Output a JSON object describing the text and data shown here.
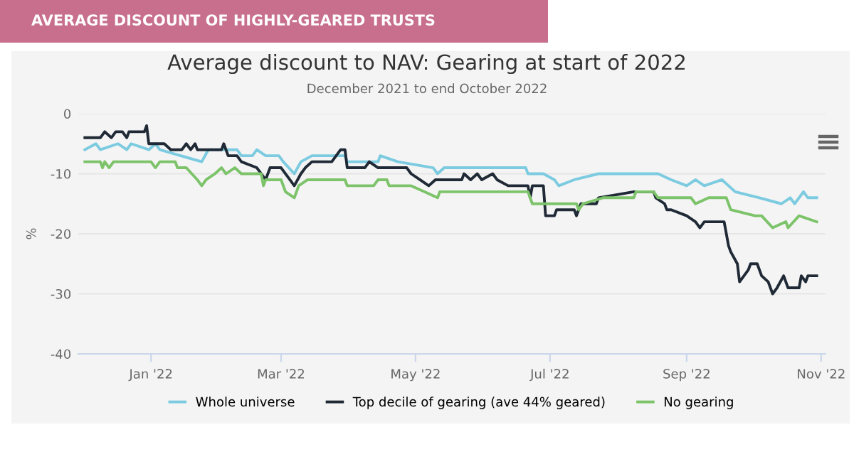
{
  "chart_data": {
    "type": "line",
    "title": "Average discount to NAV: Gearing at start of 2022",
    "subtitle": "December 2021 to end October 2022",
    "ylabel": "%",
    "annotations": [
      "AVERAGE DISCOUNT OF HIGHLY-GEARED TRUSTS"
    ],
    "xlim": [
      "2021-11-29",
      "2022-11-03"
    ],
    "xticks": [
      {
        "value": "2022-01-01",
        "label": "Jan '22"
      },
      {
        "value": "2022-03-01",
        "label": "Mar '22"
      },
      {
        "value": "2022-05-01",
        "label": "May '22"
      },
      {
        "value": "2022-07-01",
        "label": "Jul '22"
      },
      {
        "value": "2022-09-01",
        "label": "Sep '22"
      },
      {
        "value": "2022-11-01",
        "label": "Nov '22"
      }
    ],
    "ylim": [
      -40,
      0
    ],
    "yticks": [
      0,
      -10,
      -20,
      -30,
      -40
    ],
    "grid": "y",
    "legend": "bottom",
    "series": [
      {
        "name": "Whole universe",
        "color": "#7ccbe0",
        "x": [
          "2021-12-02",
          "2021-12-07",
          "2021-12-09",
          "2021-12-17",
          "2021-12-21",
          "2021-12-23",
          "2021-12-31",
          "2022-01-03",
          "2022-01-05",
          "2022-01-24",
          "2022-01-27",
          "2022-02-09",
          "2022-02-11",
          "2022-02-16",
          "2022-02-18",
          "2022-02-22",
          "2022-02-28",
          "2022-03-02",
          "2022-03-07",
          "2022-03-10",
          "2022-03-15",
          "2022-03-30",
          "2022-03-31",
          "2022-04-14",
          "2022-04-15",
          "2022-04-23",
          "2022-05-09",
          "2022-05-11",
          "2022-05-14",
          "2022-06-20",
          "2022-06-21",
          "2022-06-28",
          "2022-07-03",
          "2022-07-05",
          "2022-07-12",
          "2022-07-23",
          "2022-08-19",
          "2022-08-25",
          "2022-09-01",
          "2022-09-05",
          "2022-09-09",
          "2022-09-17",
          "2022-09-20",
          "2022-09-23",
          "2022-10-04",
          "2022-10-14",
          "2022-10-18",
          "2022-10-20",
          "2022-10-24",
          "2022-10-26",
          "2022-10-30"
        ],
        "values": [
          -6,
          -5,
          -6,
          -5,
          -6,
          -5,
          -6,
          -5,
          -6,
          -8,
          -6,
          -6,
          -7,
          -7,
          -6,
          -7,
          -7,
          -8,
          -10,
          -8,
          -7,
          -7,
          -8,
          -8,
          -7,
          -8,
          -9,
          -10,
          -9,
          -9,
          -10,
          -10,
          -11,
          -12,
          -11,
          -10,
          -10,
          -11,
          -12,
          -11,
          -12,
          -11,
          -12,
          -13,
          -14,
          -15,
          -14,
          -15,
          -13,
          -14,
          -14
        ]
      },
      {
        "name": "Top decile of gearing (ave 44% geared)",
        "color": "#1f2a36",
        "x": [
          "2021-12-02",
          "2021-12-09",
          "2021-12-11",
          "2021-12-14",
          "2021-12-16",
          "2021-12-19",
          "2021-12-21",
          "2021-12-22",
          "2021-12-29",
          "2021-12-30",
          "2021-12-31",
          "2022-01-07",
          "2022-01-10",
          "2022-01-15",
          "2022-01-17",
          "2022-01-19",
          "2022-01-21",
          "2022-01-22",
          "2022-02-02",
          "2022-02-03",
          "2022-02-05",
          "2022-02-09",
          "2022-02-11",
          "2022-02-18",
          "2022-02-22",
          "2022-02-24",
          "2022-03-01",
          "2022-03-05",
          "2022-03-07",
          "2022-03-10",
          "2022-03-12",
          "2022-03-15",
          "2022-03-24",
          "2022-03-26",
          "2022-03-28",
          "2022-03-30",
          "2022-03-31",
          "2022-04-08",
          "2022-04-10",
          "2022-04-14",
          "2022-04-27",
          "2022-04-29",
          "2022-05-03",
          "2022-05-07",
          "2022-05-10",
          "2022-05-22",
          "2022-05-23",
          "2022-05-26",
          "2022-05-29",
          "2022-05-31",
          "2022-06-05",
          "2022-06-07",
          "2022-06-12",
          "2022-06-21",
          "2022-06-22",
          "2022-06-23",
          "2022-06-28",
          "2022-06-29",
          "2022-07-03",
          "2022-07-04",
          "2022-07-12",
          "2022-07-13",
          "2022-07-15",
          "2022-07-22",
          "2022-07-23",
          "2022-08-08",
          "2022-08-17",
          "2022-08-18",
          "2022-08-22",
          "2022-08-23",
          "2022-08-25",
          "2022-09-01",
          "2022-09-05",
          "2022-09-07",
          "2022-09-09",
          "2022-09-18",
          "2022-09-20",
          "2022-09-21",
          "2022-09-24",
          "2022-09-25",
          "2022-09-29",
          "2022-09-30",
          "2022-10-03",
          "2022-10-05",
          "2022-10-08",
          "2022-10-10",
          "2022-10-12",
          "2022-10-15",
          "2022-10-17",
          "2022-10-22",
          "2022-10-23",
          "2022-10-25",
          "2022-10-26",
          "2022-10-30"
        ],
        "values": [
          -4,
          -4,
          -3,
          -4,
          -3,
          -3,
          -4,
          -3,
          -3,
          -2,
          -5,
          -5,
          -6,
          -6,
          -5,
          -6,
          -5,
          -6,
          -6,
          -5,
          -7,
          -7,
          -8,
          -9,
          -11,
          -9,
          -9,
          -11,
          -12,
          -10,
          -9,
          -8,
          -8,
          -7,
          -6,
          -6,
          -9,
          -9,
          -8,
          -9,
          -9,
          -10,
          -11,
          -12,
          -11,
          -11,
          -10,
          -11,
          -10,
          -11,
          -10,
          -11,
          -12,
          -12,
          -14,
          -12,
          -12,
          -17,
          -17,
          -16,
          -16,
          -17,
          -15,
          -15,
          -14,
          -13,
          -13,
          -14,
          -15,
          -16,
          -16,
          -17,
          -18,
          -19,
          -18,
          -18,
          -22,
          -23,
          -25,
          -28,
          -26,
          -25,
          -25,
          -27,
          -28,
          -30,
          -29,
          -27,
          -29,
          -29,
          -27,
          -28,
          -27,
          -27
        ]
      },
      {
        "name": "No gearing",
        "color": "#7cc36a",
        "x": [
          "2021-12-02",
          "2021-12-09",
          "2021-12-10",
          "2021-12-11",
          "2021-12-13",
          "2021-12-15",
          "2022-01-01",
          "2022-01-03",
          "2022-01-05",
          "2022-01-12",
          "2022-01-13",
          "2022-01-17",
          "2022-01-22",
          "2022-01-24",
          "2022-01-26",
          "2022-01-30",
          "2022-02-02",
          "2022-02-04",
          "2022-02-08",
          "2022-02-11",
          "2022-02-20",
          "2022-02-21",
          "2022-02-22",
          "2022-03-01",
          "2022-03-03",
          "2022-03-07",
          "2022-03-09",
          "2022-03-13",
          "2022-03-30",
          "2022-03-31",
          "2022-04-12",
          "2022-04-14",
          "2022-04-18",
          "2022-04-19",
          "2022-04-29",
          "2022-05-05",
          "2022-05-11",
          "2022-05-12",
          "2022-06-21",
          "2022-06-23",
          "2022-07-13",
          "2022-07-14",
          "2022-07-16",
          "2022-07-25",
          "2022-08-08",
          "2022-08-09",
          "2022-08-17",
          "2022-08-19",
          "2022-09-03",
          "2022-09-05",
          "2022-09-11",
          "2022-09-19",
          "2022-09-21",
          "2022-10-02",
          "2022-10-05",
          "2022-10-10",
          "2022-10-16",
          "2022-10-17",
          "2022-10-22",
          "2022-10-30"
        ],
        "values": [
          -8,
          -8,
          -9,
          -8,
          -9,
          -8,
          -8,
          -9,
          -8,
          -8,
          -9,
          -9,
          -11,
          -12,
          -11,
          -10,
          -9,
          -10,
          -9,
          -10,
          -10,
          -12,
          -11,
          -11,
          -13,
          -14,
          -12,
          -11,
          -11,
          -12,
          -12,
          -11,
          -11,
          -12,
          -12,
          -13,
          -14,
          -13,
          -13,
          -15,
          -15,
          -16,
          -15,
          -14,
          -14,
          -13,
          -13,
          -14,
          -14,
          -15,
          -14,
          -14,
          -16,
          -17,
          -17,
          -19,
          -18,
          -19,
          -17,
          -18
        ]
      }
    ]
  }
}
